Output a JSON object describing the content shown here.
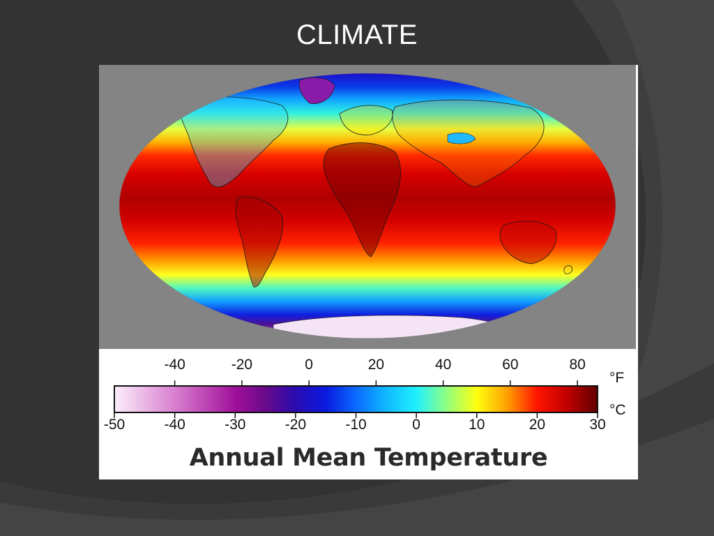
{
  "slide": {
    "title": "CLIMATE"
  },
  "map": {
    "background_color": "#848484",
    "projection": "Robinson",
    "ocean_land_style": "temperature heatmap with coastline outlines"
  },
  "legend": {
    "title": "Annual Mean Temperature",
    "fahrenheit_unit": "°F",
    "celsius_unit": "°C",
    "fahrenheit_ticks": [
      "-40",
      "-20",
      "0",
      "20",
      "40",
      "60",
      "80"
    ],
    "celsius_ticks": [
      "-50",
      "-40",
      "-30",
      "-20",
      "-10",
      "0",
      "10",
      "20",
      "30"
    ],
    "celsius_range": [
      -50,
      30
    ],
    "color_stops": [
      {
        "celsius": -50,
        "color": "#fbeefa"
      },
      {
        "celsius": -40,
        "color": "#d97fcf"
      },
      {
        "celsius": -30,
        "color": "#a0109a"
      },
      {
        "celsius": -25,
        "color": "#6a0a8a"
      },
      {
        "celsius": -20,
        "color": "#2a0bb0"
      },
      {
        "celsius": -15,
        "color": "#0a1ae0"
      },
      {
        "celsius": -10,
        "color": "#0a6aff"
      },
      {
        "celsius": -5,
        "color": "#10b8ff"
      },
      {
        "celsius": 0,
        "color": "#20f0ff"
      },
      {
        "celsius": 5,
        "color": "#90ff80"
      },
      {
        "celsius": 10,
        "color": "#ffff10"
      },
      {
        "celsius": 15,
        "color": "#ffa000"
      },
      {
        "celsius": 20,
        "color": "#ff1400"
      },
      {
        "celsius": 25,
        "color": "#c00000"
      },
      {
        "celsius": 30,
        "color": "#600000"
      }
    ]
  }
}
